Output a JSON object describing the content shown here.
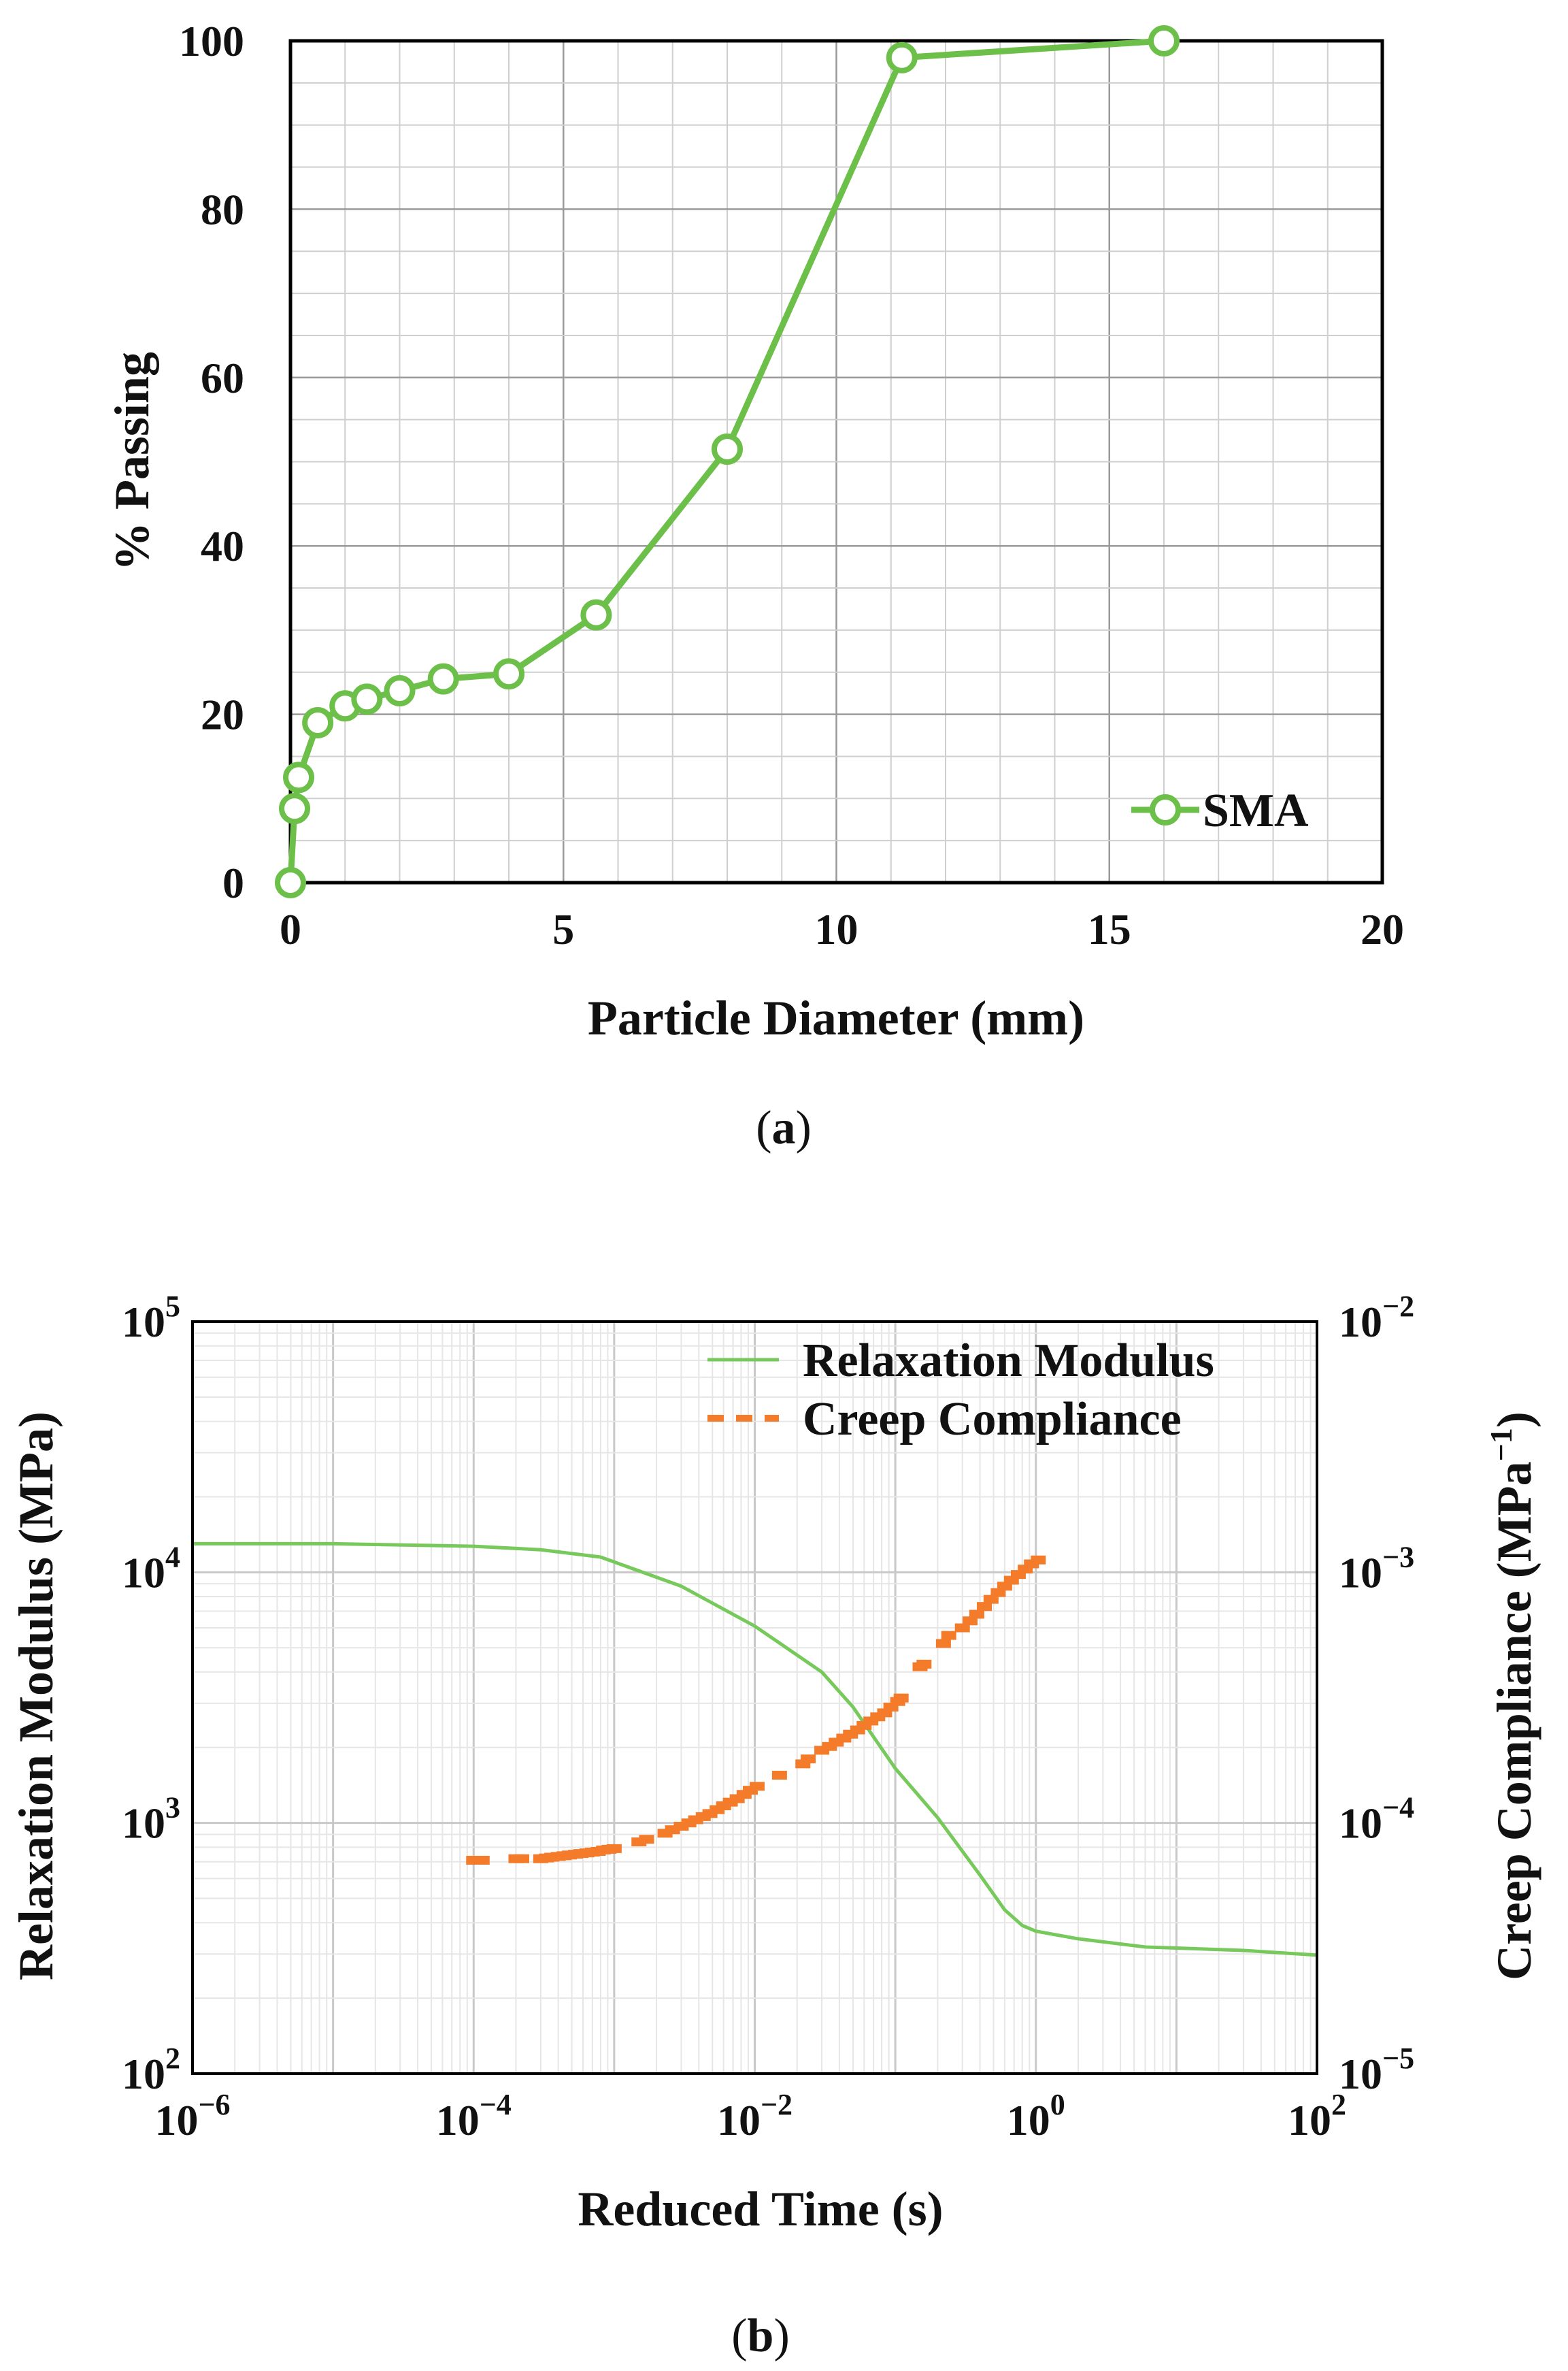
{
  "chart_data": [
    {
      "id": "a",
      "type": "line",
      "caption": {
        "open": "(",
        "letter": "a",
        "close": ")"
      },
      "title": "",
      "xlabel": "Particle Diameter (mm)",
      "ylabel": "% Passing",
      "xlim": [
        0,
        20
      ],
      "ylim": [
        0,
        100
      ],
      "xticks": [
        "0",
        "5",
        "10",
        "15",
        "20"
      ],
      "yticks": [
        "0",
        "20",
        "40",
        "60",
        "80",
        "100"
      ],
      "grid": true,
      "legend_position": "bottom-right",
      "series": [
        {
          "name": "SMA",
          "color": "#6cc04a",
          "marker": "open-circle",
          "x": [
            0.0,
            0.075,
            0.15,
            0.5,
            1.0,
            1.4,
            2.0,
            2.8,
            4.0,
            5.6,
            8.0,
            11.2,
            16.0
          ],
          "y": [
            0.0,
            8.8,
            12.5,
            19.0,
            21.0,
            21.8,
            22.8,
            24.2,
            24.8,
            31.8,
            51.5,
            98.0,
            100.0
          ]
        }
      ]
    },
    {
      "id": "b",
      "type": "line",
      "caption": {
        "open": "(",
        "letter": "b",
        "close": ")"
      },
      "title": "",
      "xlabel": "Reduced Time (s)",
      "ylabel_left": "Relaxation Modulus (MPa)",
      "ylabel_right": "Creep Compliance (MPa",
      "ylabel_right_exp": "−1",
      "ylabel_right_close": ")",
      "xscale": "log",
      "xlim": [
        1e-06,
        100
      ],
      "ylim_left": [
        100,
        100000
      ],
      "ylim_right": [
        1e-05,
        0.01
      ],
      "xticks": [
        {
          "base": "10",
          "exp": "−6"
        },
        {
          "base": "10",
          "exp": "−4"
        },
        {
          "base": "10",
          "exp": "−2"
        },
        {
          "base": "10",
          "exp": "0"
        },
        {
          "base": "10",
          "exp": "2"
        }
      ],
      "yticks_left": [
        {
          "base": "10",
          "exp": "2"
        },
        {
          "base": "10",
          "exp": "3"
        },
        {
          "base": "10",
          "exp": "4"
        },
        {
          "base": "10",
          "exp": "5"
        }
      ],
      "yticks_right": [
        {
          "base": "10",
          "exp": "−5"
        },
        {
          "base": "10",
          "exp": "−4"
        },
        {
          "base": "10",
          "exp": "−3"
        },
        {
          "base": "10",
          "exp": "−2"
        }
      ],
      "grid": true,
      "legend_position": "top-right",
      "series": [
        {
          "name": "Relaxation Modulus",
          "axis": "left",
          "color": "#76c95a",
          "style": "solid",
          "x": [
            1e-06,
            1e-05,
            0.0001,
            0.0003,
            0.0008,
            0.003,
            0.01,
            0.03,
            0.05,
            0.1,
            0.2,
            0.4,
            0.6,
            0.8,
            1.0,
            2.0,
            6.0,
            10.0,
            30.0,
            100.0
          ],
          "y": [
            13000,
            13000,
            12700,
            12300,
            11500,
            8800,
            6100,
            4000,
            2900,
            1650,
            1050,
            620,
            450,
            390,
            370,
            345,
            320,
            317,
            310,
            297
          ]
        },
        {
          "name": "Creep Compliance",
          "axis": "right",
          "color": "#f47b2a",
          "style": "dashed",
          "x": [
            0.0001,
            0.000115,
            0.0002,
            0.00022,
            0.0003,
            0.00033,
            0.00036,
            0.0004,
            0.00044,
            0.00048,
            0.00053,
            0.00058,
            0.00064,
            0.0007,
            0.00077,
            0.00084,
            0.00092,
            0.001,
            0.0015,
            0.0017,
            0.0023,
            0.0026,
            0.003,
            0.0034,
            0.0038,
            0.0043,
            0.0048,
            0.0054,
            0.006,
            0.0067,
            0.0075,
            0.0084,
            0.0093,
            0.0104,
            0.015,
            0.022,
            0.024,
            0.03,
            0.034,
            0.038,
            0.043,
            0.048,
            0.054,
            0.06,
            0.067,
            0.075,
            0.084,
            0.093,
            0.104,
            0.11,
            0.15,
            0.16,
            0.22,
            0.24,
            0.3,
            0.34,
            0.38,
            0.43,
            0.48,
            0.54,
            0.6,
            0.67,
            0.75,
            0.84,
            0.93,
            1.04
          ],
          "y": [
            7.1e-05,
            7.1e-05,
            7.2e-05,
            7.2e-05,
            7.2e-05,
            7.25e-05,
            7.3e-05,
            7.35e-05,
            7.4e-05,
            7.45e-05,
            7.5e-05,
            7.55e-05,
            7.6e-05,
            7.65e-05,
            7.7e-05,
            7.8e-05,
            7.85e-05,
            7.9e-05,
            8.4e-05,
            8.6e-05,
            9.1e-05,
            9.4e-05,
            9.7e-05,
            0.0001,
            0.000103,
            0.000106,
            0.000109,
            0.000113,
            0.000117,
            0.000121,
            0.000125,
            0.00013,
            0.000135,
            0.00014,
            0.000155,
            0.000172,
            0.00018,
            0.000195,
            0.000202,
            0.00021,
            0.000218,
            0.000226,
            0.000235,
            0.000245,
            0.000255,
            0.000265,
            0.000275,
            0.00029,
            0.000305,
            0.000315,
            0.00042,
            0.00043,
            0.00052,
            0.00056,
            0.0006,
            0.00064,
            0.00068,
            0.00073,
            0.00078,
            0.00083,
            0.00088,
            0.00093,
            0.00098,
            0.00103,
            0.00108,
            0.00112
          ]
        }
      ]
    }
  ]
}
